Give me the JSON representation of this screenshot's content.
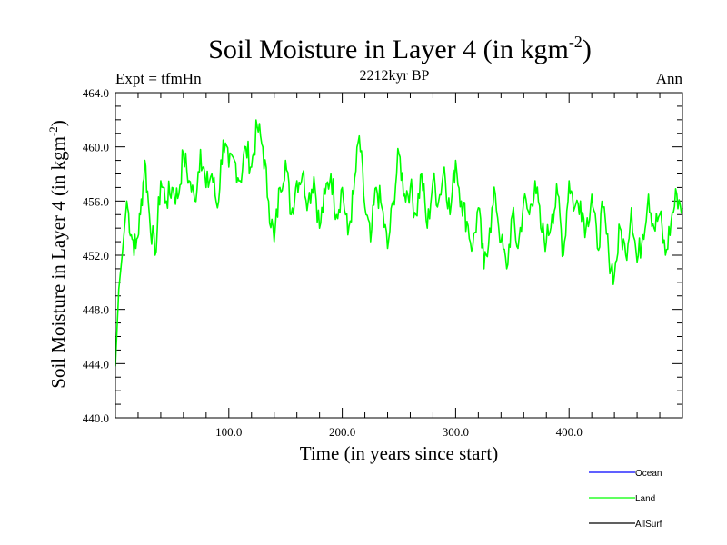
{
  "chart_data": {
    "type": "line",
    "title": "Soil Moisture in Layer 4 (in kgm",
    "title_sup": "-2",
    "title_close": ")",
    "subtitle": "2212kyr BP",
    "left_label": "Expt = tfmHn",
    "right_label": "Ann",
    "xlabel": "Time (in years since start)",
    "ylabel": "Soil Moisture in Layer 4 (in kgm",
    "ylabel_sup": "-2",
    "ylabel_close": ")",
    "xlim": [
      0,
      500
    ],
    "ylim": [
      440,
      464
    ],
    "xticks": [
      100,
      200,
      300,
      400
    ],
    "xtick_labels": [
      "100.0",
      "200.0",
      "300.0",
      "400.0"
    ],
    "yticks": [
      440,
      444,
      448,
      452,
      456,
      460,
      464
    ],
    "ytick_labels": [
      "440.0",
      "444.0",
      "448.0",
      "452.0",
      "456.0",
      "460.0",
      "464.0"
    ],
    "legend": [
      {
        "name": "Ocean",
        "color": "#0000ff"
      },
      {
        "name": "Land",
        "color": "#00ff00"
      },
      {
        "name": "AllSurf",
        "color": "#000000"
      }
    ],
    "series": [
      {
        "name": "Land",
        "color": "#00ff00",
        "x": [
          0,
          3,
          6,
          10,
          14,
          18,
          22,
          26,
          30,
          35,
          40,
          45,
          50,
          55,
          60,
          65,
          70,
          75,
          80,
          85,
          90,
          95,
          100,
          105,
          110,
          115,
          120,
          125,
          130,
          135,
          140,
          145,
          150,
          155,
          160,
          165,
          170,
          175,
          180,
          185,
          190,
          195,
          200,
          205,
          210,
          215,
          220,
          225,
          230,
          235,
          240,
          245,
          250,
          255,
          260,
          265,
          270,
          275,
          280,
          285,
          290,
          295,
          300,
          305,
          310,
          315,
          320,
          325,
          330,
          335,
          340,
          345,
          350,
          355,
          360,
          365,
          370,
          375,
          380,
          385,
          390,
          395,
          400,
          405,
          410,
          415,
          420,
          425,
          430,
          435,
          440,
          445,
          450,
          455,
          460,
          465,
          470,
          475,
          480,
          485,
          490,
          495,
          500
        ],
        "values": [
          443.8,
          449.5,
          452.0,
          456.0,
          453.5,
          452.5,
          455.0,
          459.0,
          455.0,
          452.0,
          457.5,
          456.0,
          457.0,
          456.2,
          459.5,
          457.5,
          456.0,
          459.8,
          457.0,
          458.0,
          455.5,
          460.5,
          458.5,
          459.0,
          457.5,
          460.0,
          458.5,
          461.5,
          460.0,
          456.0,
          453.0,
          457.0,
          459.0,
          455.0,
          457.5,
          458.0,
          456.0,
          457.8,
          454.0,
          456.5,
          458.0,
          455.0,
          457.0,
          453.5,
          456.5,
          460.8,
          455.5,
          453.0,
          457.0,
          455.5,
          452.5,
          456.0,
          459.5,
          456.5,
          457.0,
          455.0,
          458.0,
          454.0,
          457.5,
          456.0,
          458.5,
          455.0,
          459.0,
          456.0,
          454.5,
          452.5,
          455.5,
          451.0,
          454.0,
          456.5,
          453.0,
          451.0,
          455.0,
          452.5,
          456.0,
          455.0,
          457.5,
          454.0,
          453.0,
          455.0,
          456.5,
          452.0,
          457.5,
          455.5,
          456.0,
          454.0,
          456.5,
          452.5,
          455.5,
          452.0,
          450.5,
          454.0,
          452.0,
          455.5,
          451.5,
          453.5,
          456.5,
          454.0,
          455.0,
          452.0,
          454.5,
          456.5,
          455.5
        ]
      }
    ]
  }
}
